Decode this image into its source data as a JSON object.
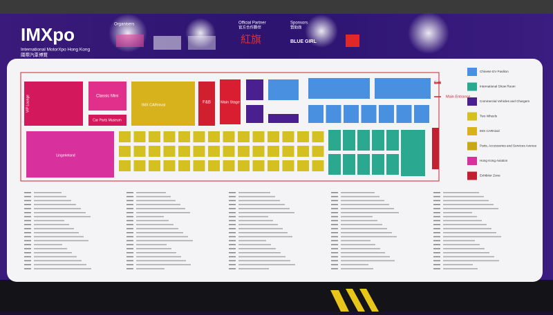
{
  "header": {
    "logo": "IMXpo",
    "logo_subtitle": "International MotorXpo Hong Kong",
    "logo_chinese": "國際汽車博覽",
    "organisers": "Organisers",
    "official_partner": "Official Partner",
    "official_partner_cn": "官方合作夥伴",
    "partner_name": "紅旗",
    "sponsors": "Sponsors",
    "sponsors_cn": "贊助商",
    "sponsor_name": "BLUE GIRL"
  },
  "floor_plan": {
    "zones": [
      {
        "label": "VIP Lounge"
      },
      {
        "label": "Classic Mini"
      },
      {
        "label": "Car Parts Museum"
      },
      {
        "label": "IMX CARnival"
      },
      {
        "label": "F&B"
      },
      {
        "label": "Main Stage"
      },
      {
        "label": "Lingerieland"
      }
    ],
    "exit": "Exit",
    "main_entrance": "Main Entrance"
  },
  "legend": [
    {
      "label": "Chinese EV Pavilion"
    },
    {
      "label": "International Show Room"
    },
    {
      "label": "Commercial Vehicles and Chargers"
    },
    {
      "label": "Two Wheels"
    },
    {
      "label": "IMX CARnival"
    },
    {
      "label": "Parts, Accessories and Services Avenue"
    },
    {
      "label": "Hong Kong Aviation"
    },
    {
      "label": "Exhibitor Zone"
    }
  ]
}
